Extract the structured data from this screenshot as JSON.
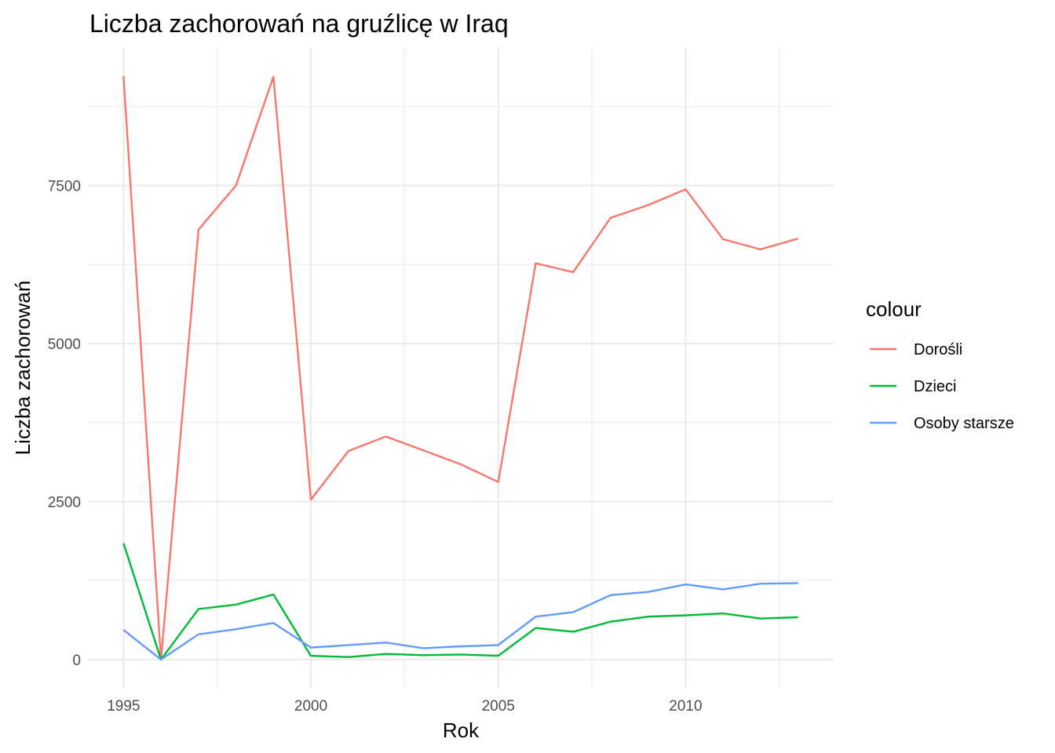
{
  "chart_data": {
    "type": "line",
    "title": "Liczba zachorowań na gruźlicę w Iraq",
    "xlabel": "Rok",
    "ylabel": "Liczba zachorowań",
    "x": [
      1995,
      1996,
      1997,
      1998,
      1999,
      2000,
      2001,
      2002,
      2003,
      2004,
      2005,
      2006,
      2007,
      2008,
      2009,
      2010,
      2011,
      2012,
      2013
    ],
    "xlim": [
      1994.05,
      2013.95
    ],
    "ylim": [
      -460,
      9690
    ],
    "x_ticks": [
      1995,
      2000,
      2005,
      2010
    ],
    "x_tick_labels": [
      "1995",
      "2000",
      "2005",
      "2010"
    ],
    "y_ticks": [
      0,
      2500,
      5000,
      7500
    ],
    "y_tick_labels": [
      "0",
      "2500",
      "5000",
      "7500"
    ],
    "grid": true,
    "legend": {
      "title": "colour",
      "position": "right"
    },
    "series": [
      {
        "name": "Dorośli",
        "color": "#F8766D",
        "values": [
          9230,
          0,
          6800,
          7500,
          9220,
          2530,
          3300,
          3530,
          3310,
          3090,
          2810,
          6270,
          6130,
          6990,
          7190,
          7440,
          6650,
          6490,
          6660
        ]
      },
      {
        "name": "Dzieci",
        "color": "#00BA38",
        "values": [
          1840,
          0,
          800,
          870,
          1030,
          60,
          40,
          90,
          70,
          80,
          60,
          500,
          440,
          600,
          680,
          700,
          730,
          650,
          670
        ]
      },
      {
        "name": "Osoby starsze",
        "color": "#619CFF",
        "values": [
          470,
          0,
          400,
          480,
          580,
          190,
          230,
          270,
          180,
          210,
          230,
          680,
          750,
          1020,
          1070,
          1190,
          1110,
          1200,
          1210
        ]
      }
    ]
  }
}
